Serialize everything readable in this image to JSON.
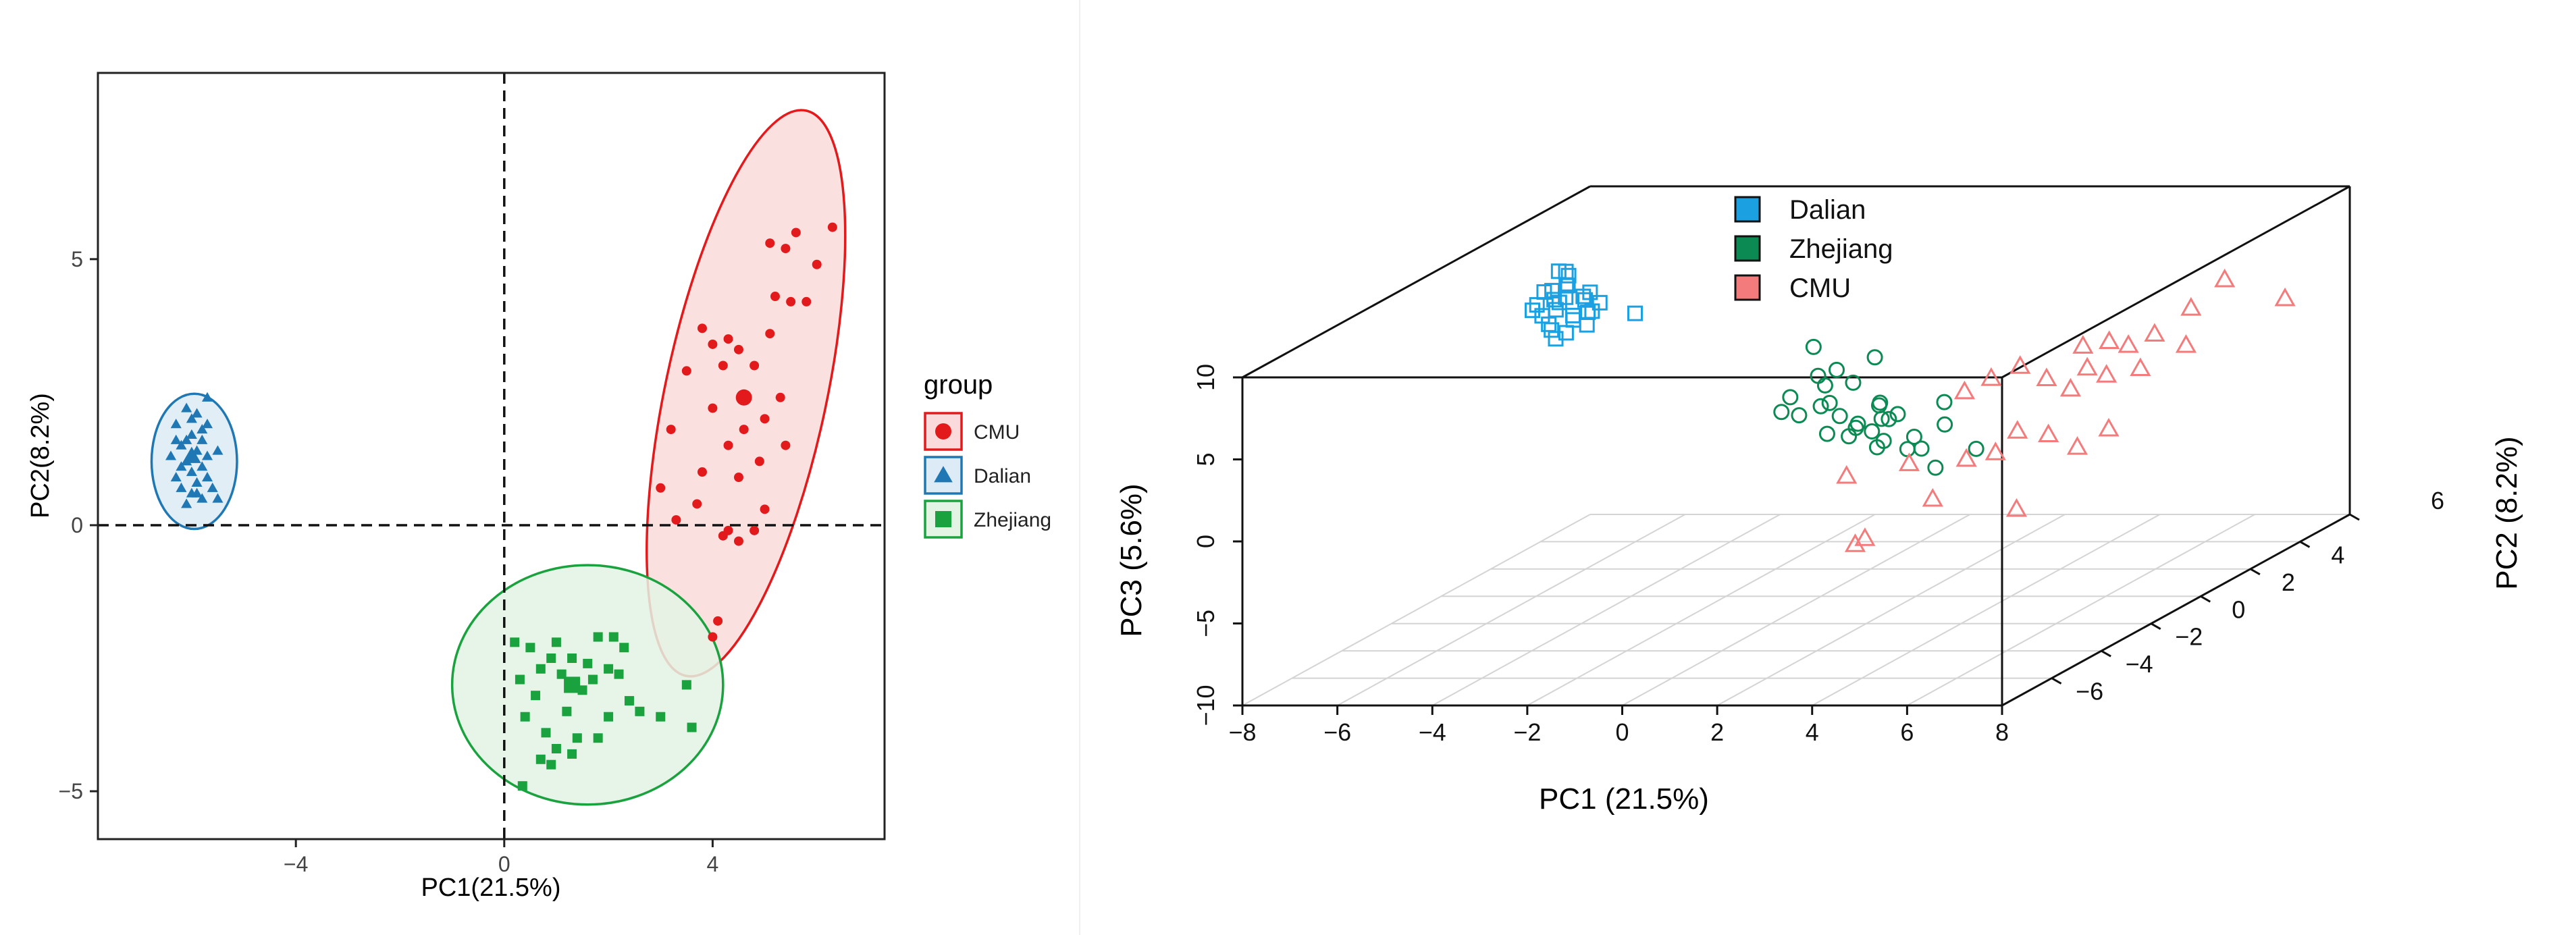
{
  "chart_data": [
    {
      "type": "scatter",
      "title": "",
      "xlabel": "PC1(21.5%)",
      "ylabel": "PC2(8.2%)",
      "xlim": [
        -7.8,
        7.3
      ],
      "ylim": [
        -5.9,
        8.5
      ],
      "xticks": [
        -4,
        0,
        4
      ],
      "yticks": [
        -5,
        0,
        5
      ],
      "reference_lines": {
        "x": 0,
        "y": 0
      },
      "grid": false,
      "legend_title": "group",
      "legend_position": "right",
      "series": [
        {
          "name": "CMU",
          "color": "#e31a1c",
          "fill": "#fadada",
          "marker": "circle",
          "centroid": [
            4.6,
            2.4
          ],
          "ellipse": {
            "center": [
              4.64,
              2.48
            ],
            "rx": 1.55,
            "ry": 5.43,
            "angle_deg": 12
          },
          "points": [
            [
              6.3,
              5.6
            ],
            [
              5.6,
              5.5
            ],
            [
              5.4,
              5.2
            ],
            [
              5.1,
              5.3
            ],
            [
              6.0,
              4.9
            ],
            [
              5.8,
              4.2
            ],
            [
              5.5,
              4.2
            ],
            [
              5.2,
              4.3
            ],
            [
              5.1,
              3.6
            ],
            [
              3.8,
              3.7
            ],
            [
              4.3,
              3.5
            ],
            [
              4.0,
              3.4
            ],
            [
              4.5,
              3.3
            ],
            [
              4.2,
              3.0
            ],
            [
              4.8,
              3.0
            ],
            [
              3.5,
              2.9
            ],
            [
              5.3,
              2.4
            ],
            [
              5.0,
              2.0
            ],
            [
              4.0,
              2.2
            ],
            [
              4.6,
              1.8
            ],
            [
              3.2,
              1.8
            ],
            [
              4.3,
              1.5
            ],
            [
              5.4,
              1.5
            ],
            [
              4.9,
              1.2
            ],
            [
              3.8,
              1.0
            ],
            [
              4.5,
              0.9
            ],
            [
              3.0,
              0.7
            ],
            [
              3.7,
              0.4
            ],
            [
              5.0,
              0.3
            ],
            [
              4.8,
              -0.1
            ],
            [
              3.3,
              0.1
            ],
            [
              4.3,
              -0.1
            ],
            [
              4.2,
              -0.2
            ],
            [
              4.5,
              -0.3
            ],
            [
              4.1,
              -1.8
            ],
            [
              4.0,
              -2.1
            ]
          ]
        },
        {
          "name": "Dalian",
          "color": "#1f78b4",
          "fill": "#dcebf5",
          "marker": "triangle",
          "centroid": [
            -6.0,
            1.3
          ],
          "ellipse": {
            "center": [
              -5.95,
              1.2
            ],
            "rx": 0.82,
            "ry": 1.27,
            "angle_deg": 0
          },
          "points": [
            [
              -5.7,
              2.4
            ],
            [
              -6.1,
              2.2
            ],
            [
              -5.9,
              2.1
            ],
            [
              -6.3,
              1.9
            ],
            [
              -5.8,
              1.8
            ],
            [
              -6.0,
              1.7
            ],
            [
              -6.2,
              1.5
            ],
            [
              -5.9,
              1.4
            ],
            [
              -6.4,
              1.3
            ],
            [
              -5.7,
              1.3
            ],
            [
              -6.1,
              1.2
            ],
            [
              -5.8,
              1.1
            ],
            [
              -6.0,
              1.0
            ],
            [
              -6.3,
              0.9
            ],
            [
              -5.9,
              0.8
            ],
            [
              -5.6,
              0.7
            ],
            [
              -6.2,
              0.7
            ],
            [
              -6.0,
              0.6
            ],
            [
              -5.8,
              0.5
            ],
            [
              -5.5,
              0.5
            ],
            [
              -6.1,
              1.6
            ],
            [
              -6.3,
              1.6
            ],
            [
              -5.7,
              0.9
            ],
            [
              -6.1,
              0.4
            ],
            [
              -5.8,
              1.6
            ],
            [
              -5.5,
              1.4
            ],
            [
              -6.0,
              2.0
            ],
            [
              -6.2,
              1.1
            ],
            [
              -5.9,
              0.6
            ],
            [
              -5.7,
              1.9
            ]
          ]
        },
        {
          "name": "Zhejiang",
          "color": "#1aa23f",
          "fill": "#e3f3e4",
          "marker": "square",
          "centroid": [
            1.3,
            -3.0
          ],
          "ellipse": {
            "center": [
              1.6,
              -3.0
            ],
            "rx": 2.6,
            "ry": 2.25,
            "angle_deg": 0
          },
          "points": [
            [
              0.2,
              -2.2
            ],
            [
              1.8,
              -2.1
            ],
            [
              2.1,
              -2.1
            ],
            [
              0.5,
              -2.3
            ],
            [
              1.0,
              -2.2
            ],
            [
              2.3,
              -2.3
            ],
            [
              0.9,
              -2.5
            ],
            [
              1.3,
              -2.5
            ],
            [
              1.6,
              -2.6
            ],
            [
              0.7,
              -2.7
            ],
            [
              2.0,
              -2.7
            ],
            [
              0.3,
              -2.9
            ],
            [
              1.1,
              -2.8
            ],
            [
              2.2,
              -2.8
            ],
            [
              1.7,
              -2.9
            ],
            [
              0.6,
              -3.2
            ],
            [
              1.5,
              -3.1
            ],
            [
              2.4,
              -3.3
            ],
            [
              3.5,
              -3.0
            ],
            [
              0.4,
              -3.6
            ],
            [
              1.2,
              -3.5
            ],
            [
              2.6,
              -3.5
            ],
            [
              3.0,
              -3.6
            ],
            [
              2.0,
              -3.6
            ],
            [
              0.8,
              -3.9
            ],
            [
              1.8,
              -4.0
            ],
            [
              3.6,
              -3.8
            ],
            [
              1.0,
              -4.2
            ],
            [
              1.4,
              -4.0
            ],
            [
              0.7,
              -4.4
            ],
            [
              1.3,
              -4.3
            ],
            [
              0.9,
              -4.5
            ],
            [
              0.35,
              -4.9
            ]
          ]
        }
      ]
    },
    {
      "type": "scatter",
      "subtype": "scatter3d",
      "title": "",
      "xlabel": "PC1 (21.5%)",
      "ylabel": "PC2 (8.2%)",
      "zlabel": "PC3 (5.6%)",
      "xlim": [
        -8,
        8
      ],
      "ylim": [
        -8,
        6
      ],
      "zlim": [
        -10,
        10
      ],
      "xticks": [
        -8,
        -6,
        -4,
        -2,
        0,
        2,
        4,
        6,
        8
      ],
      "yticks": [
        -6,
        -4,
        -2,
        0,
        2,
        4,
        6
      ],
      "zticks": [
        -10,
        -5,
        0,
        5,
        10
      ],
      "grid": true,
      "legend_position": "top",
      "series": [
        {
          "name": "Dalian",
          "color": "#1ba1e2",
          "marker": "square",
          "points": [
            [
              -6.1,
              1.5,
              8.3
            ],
            [
              -6.0,
              1.2,
              8.8
            ],
            [
              -5.8,
              0.9,
              8.2
            ],
            [
              -6.2,
              1.6,
              7.6
            ],
            [
              -5.9,
              1.0,
              7.4
            ],
            [
              -6.3,
              1.3,
              7.0
            ],
            [
              -6.0,
              0.8,
              6.8
            ],
            [
              -5.7,
              1.4,
              6.9
            ],
            [
              -6.4,
              1.7,
              6.5
            ],
            [
              -5.8,
              1.1,
              6.2
            ],
            [
              -6.1,
              0.7,
              6.0
            ],
            [
              -5.6,
              1.8,
              6.4
            ],
            [
              -6.5,
              1.2,
              6.1
            ],
            [
              -6.0,
              1.5,
              5.6
            ],
            [
              -5.9,
              0.6,
              5.2
            ],
            [
              -6.2,
              1.0,
              5.4
            ],
            [
              -6.3,
              0.9,
              7.8
            ],
            [
              -5.7,
              1.6,
              7.2
            ],
            [
              -6.0,
              1.9,
              6.7
            ],
            [
              -5.5,
              1.3,
              6.3
            ],
            [
              -6.1,
              1.1,
              8.9
            ],
            [
              -6.4,
              0.8,
              7.1
            ],
            [
              -5.8,
              1.7,
              5.9
            ],
            [
              -6.1,
              1.4,
              4.9
            ],
            [
              -6.6,
              1.0,
              6.6
            ],
            [
              -5.4,
              0.9,
              5.8
            ],
            [
              -4.7,
              1.5,
              6.0
            ],
            [
              -6.5,
              1.6,
              7.3
            ]
          ]
        },
        {
          "name": "Zhejiang",
          "color": "#0b8a53",
          "marker": "circle",
          "points": [
            [
              1.1,
              -2.4,
              7.2
            ],
            [
              1.9,
              -3.0,
              6.3
            ],
            [
              2.6,
              -2.8,
              6.9
            ],
            [
              1.3,
              -2.6,
              5.6
            ],
            [
              2.3,
              -3.1,
              5.6
            ],
            [
              1.5,
              -2.7,
              5.1
            ],
            [
              2.9,
              -3.2,
              4.3
            ],
            [
              1.7,
              -2.9,
              4.2
            ],
            [
              2.5,
              -2.4,
              3.8
            ],
            [
              1.2,
              -2.3,
              3.5
            ],
            [
              0.4,
              -2.0,
              3.8
            ],
            [
              3.5,
              -3.6,
              4.1
            ],
            [
              0.9,
              -2.6,
              3.2
            ],
            [
              1.7,
              -3.0,
              2.4
            ],
            [
              2.2,
              -2.8,
              2.6
            ],
            [
              2.8,
              -3.3,
              2.8
            ],
            [
              3.0,
              -3.0,
              3.3
            ],
            [
              2.4,
              -3.1,
              3.1
            ],
            [
              3.1,
              -3.4,
              2.3
            ],
            [
              2.0,
              -2.7,
              2.0
            ],
            [
              3.9,
              -3.7,
              2.8
            ],
            [
              4.0,
              -3.6,
              2.0
            ],
            [
              3.6,
              -3.4,
              1.8
            ],
            [
              4.7,
              -4.0,
              3.8
            ],
            [
              -0.1,
              -1.4,
              2.4
            ],
            [
              2.7,
              -2.9,
              1.5
            ],
            [
              4.4,
              -3.8,
              1.0
            ],
            [
              1.6,
              -2.3,
              2.9
            ],
            [
              2.9,
              -3.1,
              3.4
            ],
            [
              4.9,
              -4.4,
              5.5
            ],
            [
              5.1,
              -3.5,
              1.9
            ]
          ]
        },
        {
          "name": "CMU",
          "color": "#f37b7b",
          "marker": "triangle",
          "points": [
            [
              7.3,
              2.3,
              7.4
            ],
            [
              6.8,
              1.9,
              6.0
            ],
            [
              8.1,
              3.2,
              5.5
            ],
            [
              6.4,
              1.2,
              5.0
            ],
            [
              5.1,
              0.8,
              4.6
            ],
            [
              5.6,
              0.9,
              4.8
            ],
            [
              5.9,
              1.1,
              4.4
            ],
            [
              4.3,
              -0.2,
              4.2
            ],
            [
              3.9,
              -0.6,
              3.8
            ],
            [
              5.4,
              0.4,
              3.6
            ],
            [
              4.7,
              0.1,
              3.2
            ],
            [
              5.7,
              0.6,
              3.0
            ],
            [
              3.6,
              -1.1,
              3.4
            ],
            [
              5.1,
              0.3,
              2.4
            ],
            [
              6.8,
              1.7,
              3.9
            ],
            [
              6.1,
              1.2,
              2.9
            ],
            [
              4.4,
              -0.5,
              0.5
            ],
            [
              5.0,
              -0.4,
              0.2
            ],
            [
              4.2,
              -1.0,
              -0.4
            ],
            [
              5.4,
              0.0,
              -0.9
            ],
            [
              5.8,
              0.5,
              -0.2
            ],
            [
              3.9,
              -1.6,
              -0.3
            ],
            [
              2.8,
              -1.8,
              -0.4
            ],
            [
              1.9,
              -2.6,
              -0.5
            ],
            [
              2.6,
              -3.2,
              -3.8
            ],
            [
              4.8,
              -1.3,
              -3.6
            ],
            [
              3.4,
              -2.0,
              -2.4
            ],
            [
              2.5,
              -3.4,
              -4.0
            ]
          ]
        }
      ]
    }
  ]
}
